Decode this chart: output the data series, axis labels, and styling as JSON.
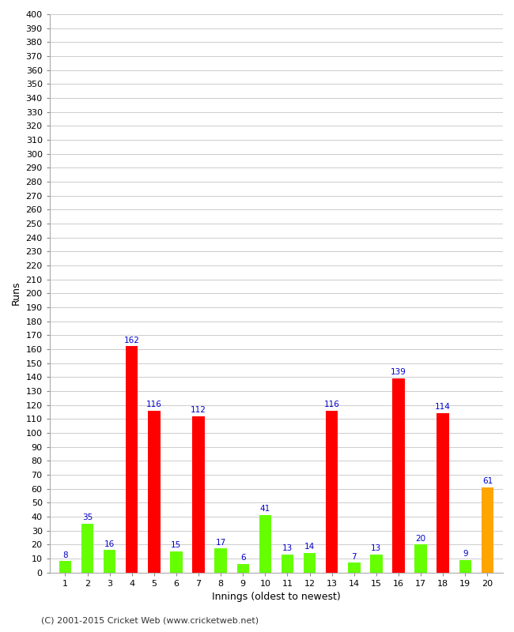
{
  "xlabel": "Innings (oldest to newest)",
  "ylabel": "Runs",
  "values": [
    8,
    35,
    16,
    162,
    116,
    15,
    112,
    17,
    6,
    41,
    13,
    14,
    116,
    7,
    13,
    139,
    20,
    114,
    9,
    61
  ],
  "colors": [
    "#66ff00",
    "#66ff00",
    "#66ff00",
    "#ff0000",
    "#ff0000",
    "#66ff00",
    "#ff0000",
    "#66ff00",
    "#66ff00",
    "#66ff00",
    "#66ff00",
    "#66ff00",
    "#ff0000",
    "#66ff00",
    "#66ff00",
    "#ff0000",
    "#66ff00",
    "#ff0000",
    "#66ff00",
    "#ffa500"
  ],
  "xlabels": [
    "1",
    "2",
    "3",
    "4",
    "5",
    "6",
    "7",
    "8",
    "9",
    "10",
    "11",
    "12",
    "13",
    "14",
    "15",
    "16",
    "17",
    "18",
    "19",
    "20"
  ],
  "ylim": [
    0,
    400
  ],
  "yticks": [
    0,
    10,
    20,
    30,
    40,
    50,
    60,
    70,
    80,
    90,
    100,
    110,
    120,
    130,
    140,
    150,
    160,
    170,
    180,
    190,
    200,
    210,
    220,
    230,
    240,
    250,
    260,
    270,
    280,
    290,
    300,
    310,
    320,
    330,
    340,
    350,
    360,
    370,
    380,
    390,
    400
  ],
  "label_color": "#0000cc",
  "plot_bg_color": "#ffffff",
  "fig_bg_color": "#ffffff",
  "grid_color": "#cccccc",
  "footer": "(C) 2001-2015 Cricket Web (www.cricketweb.net)",
  "bar_width": 0.55
}
